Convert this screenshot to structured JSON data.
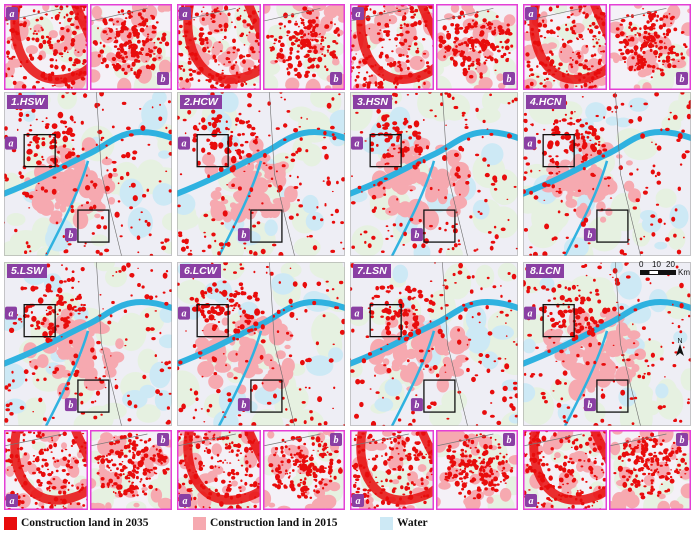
{
  "colors": {
    "construction_2035": "#e80c0c",
    "construction_2015": "#f6a9b0",
    "water": "#cde9f5",
    "river": "#2fb2e0",
    "panel_border": "#e43fd6",
    "badge": "#8a3fa3",
    "forest": "#e6f1e1",
    "land": "#eeeef5"
  },
  "zoom_badges": [
    "a",
    "b"
  ],
  "scenarios": [
    "1.HSW",
    "2.HCW",
    "3.HSN",
    "4.HCN",
    "5.LSW",
    "6.LCW",
    "7.LSN",
    "8.LCN"
  ],
  "scale_bar": {
    "ticks": [
      "0",
      "10",
      "20"
    ],
    "unit": "Km"
  },
  "north_arrow": "N",
  "legend": [
    {
      "label": "Construction land in 2035",
      "icon": "red-square"
    },
    {
      "label": "Construction land in 2015",
      "icon": "pink-square"
    },
    {
      "label": "Water",
      "icon": "light-blue-square"
    }
  ]
}
